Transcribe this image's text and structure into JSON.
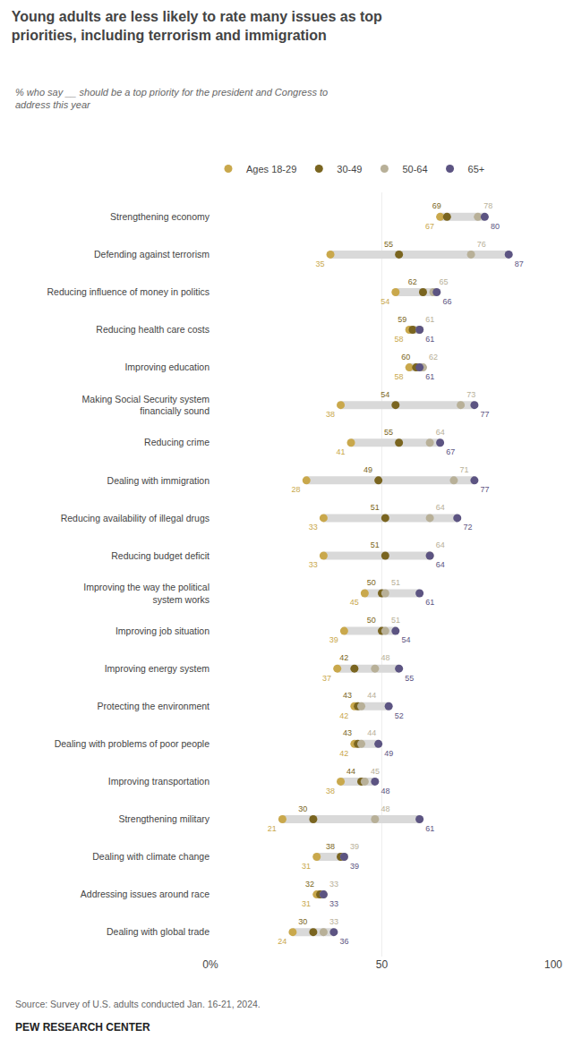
{
  "chart_data": {
    "type": "dot",
    "orientation": "horizontal",
    "title": "Young adults are less likely to rate many issues as top\npriorities, including terrorism and immigration",
    "subtitle": "% who say __ should be a top priority for the president and Congress to\naddress this year",
    "annotations": [
      "Source: Survey of U.S. adults conducted Jan. 16-21, 2024.",
      "PEW RESEARCH CENTER"
    ],
    "categories": [
      "Strengthening economy",
      "Defending against terrorism",
      "Reducing influence of money in politics",
      "Reducing health care costs",
      "Improving education",
      "Making Social Security system\nfinancially sound",
      "Reducing crime",
      "Dealing with immigration",
      "Reducing availability of illegal drugs",
      "Reducing budget deficit",
      "Improving the way the political\nsystem works",
      "Improving job situation",
      "Improving energy system",
      "Protecting the environment",
      "Dealing with problems of poor people",
      "Improving transportation",
      "Strengthening military",
      "Dealing with climate change",
      "Addressing issues around race",
      "Dealing with global trade"
    ],
    "series": [
      {
        "name": "Ages 18-29",
        "color": "#c9a84c",
        "values": [
          67,
          35,
          54,
          58,
          58,
          38,
          41,
          28,
          33,
          33,
          45,
          39,
          37,
          42,
          42,
          38,
          21,
          31,
          31,
          24
        ]
      },
      {
        "name": "30-49",
        "color": "#7a6520",
        "values": [
          69,
          55,
          62,
          59,
          60,
          54,
          55,
          49,
          51,
          51,
          50,
          50,
          42,
          43,
          43,
          44,
          30,
          38,
          32,
          30
        ]
      },
      {
        "name": "50-64",
        "color": "#b8b098",
        "values": [
          78,
          76,
          65,
          61,
          62,
          73,
          64,
          71,
          64,
          64,
          51,
          51,
          48,
          44,
          44,
          45,
          48,
          39,
          33,
          33
        ]
      },
      {
        "name": "65+",
        "color": "#5c5482",
        "values": [
          80,
          87,
          66,
          61,
          61,
          77,
          67,
          77,
          72,
          64,
          61,
          54,
          55,
          52,
          49,
          48,
          61,
          39,
          33,
          36
        ]
      }
    ],
    "xlim": [
      0,
      100
    ],
    "xticks": [
      {
        "value": 0,
        "label": "0%"
      },
      50,
      100
    ],
    "grid": true,
    "data_labels": true,
    "legend": "top"
  }
}
